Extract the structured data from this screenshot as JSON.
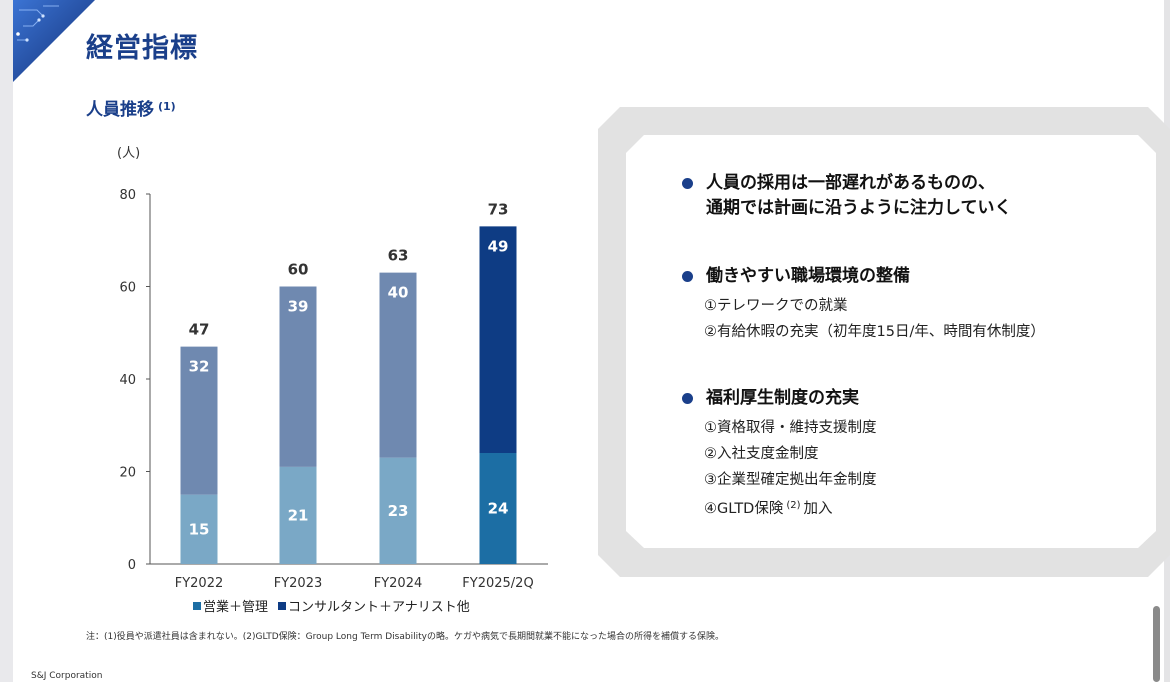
{
  "page": {
    "title": "経営指標",
    "subtitle": "人員推移",
    "subtitle_note": "(1)",
    "unit": "(人)",
    "note": "注：(1)役員や派遣社員は含まれない。(2)GLTD保険：Group Long Term Disabilityの略。ケガや病気で長期間就業不能になった場合の所得を補償する保険。",
    "company": "S&J Corporation"
  },
  "chart_data": {
    "type": "bar",
    "stacked": true,
    "title": "人員推移",
    "ylabel": "(人)",
    "xlabel": "",
    "ylim": [
      0,
      80
    ],
    "yticks": [
      0,
      20,
      40,
      60,
      80
    ],
    "categories": [
      "FY2022",
      "FY2023",
      "FY2024",
      "FY2025/2Q"
    ],
    "series": [
      {
        "name": "営業＋管理",
        "values": [
          15,
          21,
          23,
          24
        ],
        "colors": [
          "#7aa8c6",
          "#7aa8c6",
          "#7aa8c6",
          "#1c6ea4"
        ]
      },
      {
        "name": "コンサルタント＋アナリスト他",
        "values": [
          32,
          39,
          40,
          49
        ],
        "colors": [
          "#6f89b0",
          "#6f89b0",
          "#6f89b0",
          "#0e3c84"
        ]
      }
    ],
    "totals": [
      47,
      60,
      63,
      73
    ],
    "legend": [
      {
        "label": "■営業＋管理",
        "color": "#1c6ea4"
      },
      {
        "label": "■コンサルタント＋アナリスト他",
        "color": "#0e3c84"
      }
    ]
  },
  "panel": {
    "sections": [
      {
        "heading_lines": [
          "人員の採用は一部遅れがあるものの、",
          "通期では計画に沿うように注力していく"
        ],
        "items": []
      },
      {
        "heading_lines": [
          "働きやすい職場環境の整備"
        ],
        "items": [
          "①テレワークでの就業",
          "②有給休暇の充実（初年度15日/年、時間有休制度）"
        ]
      },
      {
        "heading_lines": [
          "福利厚生制度の充実"
        ],
        "items": [
          "①資格取得・維持支援制度",
          "②入社支度金制度",
          "③企業型確定拠出年金制度",
          "④GLTD保険"
        ],
        "last_item_note": "(2)",
        "last_item_suffix": "加入"
      }
    ]
  },
  "colors": {
    "brand": "#1a3f8a",
    "panel_frame": "#e2e2e2",
    "axis": "#555555"
  }
}
